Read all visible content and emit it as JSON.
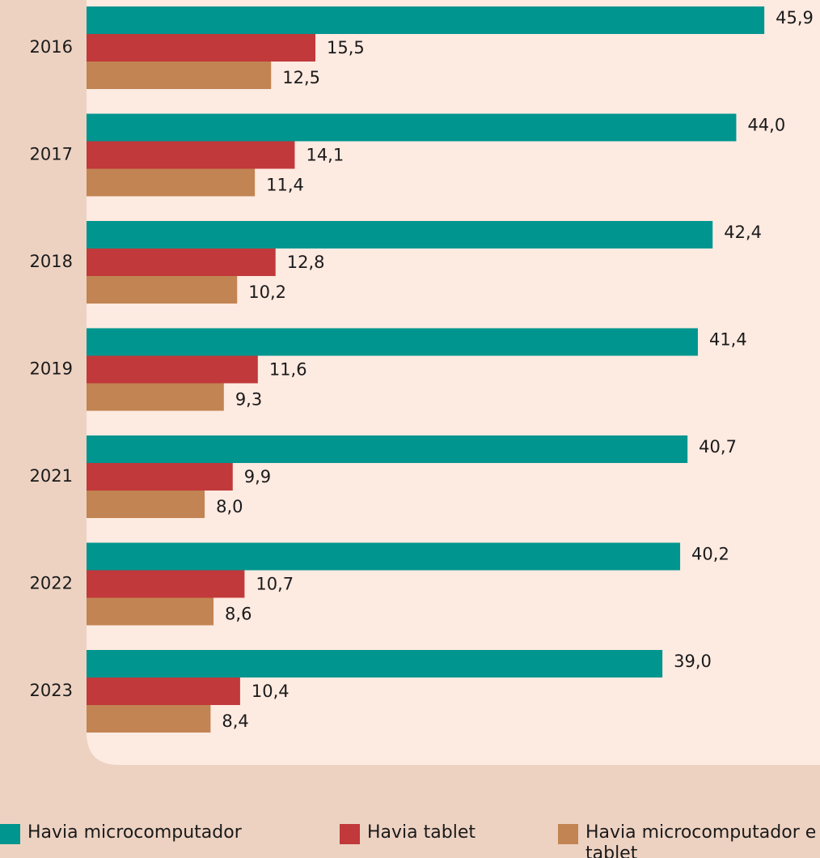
{
  "chart_data": {
    "type": "bar",
    "orientation": "horizontal",
    "categories": [
      "2016",
      "2017",
      "2018",
      "2019",
      "2021",
      "2022",
      "2023"
    ],
    "series": [
      {
        "name": "Havia microcomputador",
        "color": "#00958e",
        "values": [
          45.9,
          44.0,
          42.4,
          41.4,
          40.7,
          40.2,
          39.0
        ],
        "value_labels": [
          "45,9",
          "44,0",
          "42,4",
          "41,4",
          "40,7",
          "40,2",
          "39,0"
        ]
      },
      {
        "name": "Havia tablet",
        "color": "#c1393a",
        "values": [
          15.5,
          14.1,
          12.8,
          11.6,
          9.9,
          10.7,
          10.4
        ],
        "value_labels": [
          "15,5",
          "14,1",
          "12,8",
          "11,6",
          "9,9",
          "10,7",
          "10,4"
        ]
      },
      {
        "name": "Havia microcomputador e tablet",
        "color": "#c28453",
        "values": [
          12.5,
          11.4,
          10.2,
          9.3,
          8.0,
          8.6,
          8.4
        ],
        "value_labels": [
          "12,5",
          "11,4",
          "10,2",
          "9,3",
          "8,0",
          "8,6",
          "8,4"
        ]
      }
    ]
  }
}
